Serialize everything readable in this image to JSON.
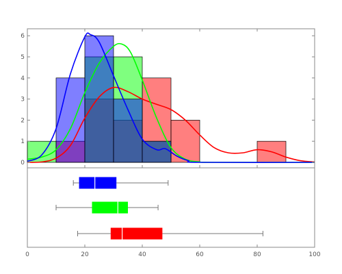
{
  "chart_data": [
    {
      "type": "histogram",
      "panel": "top",
      "xlim": [
        0,
        100
      ],
      "ylim": [
        0,
        6.4
      ],
      "x_ticks": [
        0,
        20,
        40,
        60,
        80,
        100
      ],
      "y_ticks": [
        0,
        1,
        2,
        3,
        4,
        5,
        6
      ],
      "y_tick_labels": [
        "0",
        "1",
        "2",
        "3",
        "4",
        "5",
        "6"
      ],
      "bin_edges": [
        0,
        10,
        20,
        30,
        40,
        50,
        60,
        70,
        80,
        90,
        100
      ],
      "series": [
        {
          "color": "#ff0000",
          "counts": [
            0,
            1,
            3,
            2,
            4,
            2,
            0,
            0,
            1,
            0
          ],
          "density_curve": [
            [
              0,
              0
            ],
            [
              5,
              0.02
            ],
            [
              10,
              0.2
            ],
            [
              15,
              0.8
            ],
            [
              20,
              2.1
            ],
            [
              25,
              3.1
            ],
            [
              30,
              3.55
            ],
            [
              35,
              3.35
            ],
            [
              40,
              3.0
            ],
            [
              45,
              2.75
            ],
            [
              50,
              2.5
            ],
            [
              55,
              2.0
            ],
            [
              60,
              1.3
            ],
            [
              65,
              0.7
            ],
            [
              70,
              0.45
            ],
            [
              75,
              0.45
            ],
            [
              80,
              0.6
            ],
            [
              85,
              0.5
            ],
            [
              90,
              0.25
            ],
            [
              95,
              0.08
            ],
            [
              100,
              0.02
            ]
          ]
        },
        {
          "color": "#00ff00",
          "counts": [
            1,
            0,
            5,
            5,
            1,
            0,
            0,
            0,
            0,
            0
          ],
          "density_curve": [
            [
              0,
              0.15
            ],
            [
              5,
              0.25
            ],
            [
              10,
              0.6
            ],
            [
              15,
              1.6
            ],
            [
              20,
              3.3
            ],
            [
              25,
              4.7
            ],
            [
              30,
              5.5
            ],
            [
              33,
              5.6
            ],
            [
              36,
              5.2
            ],
            [
              40,
              3.9
            ],
            [
              45,
              2.1
            ],
            [
              50,
              0.7
            ],
            [
              55,
              0.15
            ],
            [
              60,
              0.02
            ],
            [
              65,
              0
            ],
            [
              100,
              0
            ]
          ]
        },
        {
          "color": "#0000ff",
          "counts": [
            0,
            4,
            6,
            3,
            1,
            0,
            0,
            0,
            0,
            0
          ],
          "density_curve": [
            [
              0,
              0.05
            ],
            [
              5,
              0.35
            ],
            [
              10,
              1.6
            ],
            [
              15,
              4.2
            ],
            [
              20,
              5.95
            ],
            [
              22,
              6.05
            ],
            [
              25,
              5.7
            ],
            [
              30,
              4.1
            ],
            [
              35,
              2.5
            ],
            [
              40,
              1.1
            ],
            [
              45,
              0.6
            ],
            [
              48,
              0.65
            ],
            [
              52,
              0.3
            ],
            [
              56,
              0.08
            ],
            [
              60,
              0
            ],
            [
              100,
              0
            ]
          ]
        }
      ]
    },
    {
      "type": "boxplot",
      "panel": "bottom",
      "xlim": [
        0,
        100
      ],
      "x_ticks": [
        0,
        20,
        40,
        60,
        80,
        100
      ],
      "x_tick_labels": [
        "0",
        "20",
        "40",
        "60",
        "80",
        "100"
      ],
      "boxes": [
        {
          "color": "#0000ff",
          "whisker_low": 16,
          "q1": 18,
          "median": 23.5,
          "q3": 31,
          "whisker_high": 49
        },
        {
          "color": "#00ff00",
          "whisker_low": 10,
          "q1": 22.5,
          "median": 31.5,
          "q3": 35,
          "whisker_high": 45.5
        },
        {
          "color": "#ff0000",
          "whisker_low": 17.5,
          "q1": 29,
          "median": 33,
          "q3": 47,
          "whisker_high": 82
        }
      ]
    }
  ]
}
